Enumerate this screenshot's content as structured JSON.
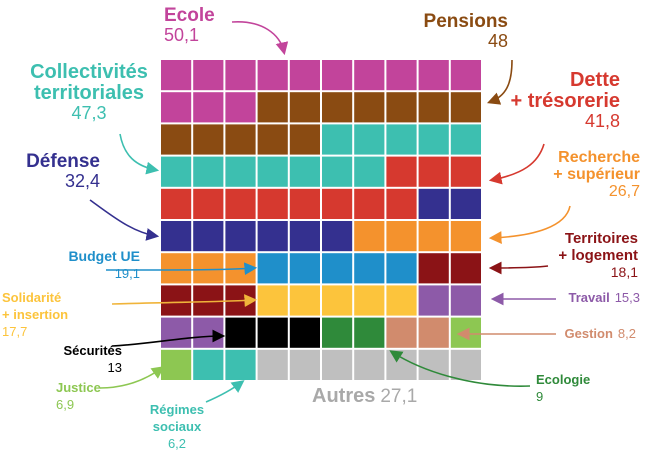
{
  "chart_data": {
    "type": "waffle",
    "unit_note": "",
    "categories": [
      {
        "key": "ecole",
        "name": "Ecole",
        "value": "50,1",
        "color": "#c2449b"
      },
      {
        "key": "pensions",
        "name": "Pensions",
        "value": "48",
        "color": "#8a4b12"
      },
      {
        "key": "collectivites",
        "name": "Collectivités territoriales",
        "name_lines": [
          "Collectivités",
          "territoriales"
        ],
        "value": "47,3",
        "color": "#3dbfb0"
      },
      {
        "key": "dette",
        "name": "Dette + trésorerie",
        "name_lines": [
          "Dette",
          "+ trésorerie"
        ],
        "value": "41,8",
        "color": "#d6392f"
      },
      {
        "key": "defense",
        "name": "Défense",
        "value": "32,4",
        "color": "#34308f"
      },
      {
        "key": "recherche",
        "name": "Recherche + supérieur",
        "name_lines": [
          "Recherche",
          "+ supérieur"
        ],
        "value": "26,7",
        "color": "#f4922d"
      },
      {
        "key": "budget_ue",
        "name": "Budget UE",
        "value": "19,1",
        "color": "#1f8fca"
      },
      {
        "key": "territoires",
        "name": "Territoires + logement",
        "name_lines": [
          "Territoires",
          "+ logement"
        ],
        "value": "18,1",
        "color": "#8b1316"
      },
      {
        "key": "solidarite",
        "name": "Solidarité + insertion",
        "name_lines": [
          "Solidarité",
          "+ insertion"
        ],
        "value": "17,7",
        "color": "#fcc43c"
      },
      {
        "key": "travail",
        "name": "Travail",
        "value": "15,3",
        "color": "#8d5aa8"
      },
      {
        "key": "securites",
        "name": "Sécurités",
        "value": "13",
        "color": "#000000"
      },
      {
        "key": "ecologie",
        "name": "Ecologie",
        "value": "9",
        "color": "#2f8a3a"
      },
      {
        "key": "gestion",
        "name": "Gestion",
        "value": "8,2",
        "color": "#d18b6d"
      },
      {
        "key": "justice",
        "name": "Justice",
        "value": "6,9",
        "color": "#8dc752"
      },
      {
        "key": "regimes",
        "name": "Régimes sociaux",
        "name_lines": [
          "Régimes",
          "sociaux"
        ],
        "value": "6,2",
        "color": "#3dbfb0"
      },
      {
        "key": "autres",
        "name": "Autres",
        "value": "27,1",
        "color": "#bfbfbf"
      }
    ],
    "grid": {
      "rows": 10,
      "cols": 10,
      "cells": [
        [
          "ecole",
          "ecole",
          "ecole",
          "ecole",
          "ecole",
          "ecole",
          "ecole",
          "ecole",
          "ecole",
          "ecole"
        ],
        [
          "ecole",
          "ecole",
          "ecole",
          "pensions",
          "pensions",
          "pensions",
          "pensions",
          "pensions",
          "pensions",
          "pensions"
        ],
        [
          "pensions",
          "pensions",
          "pensions",
          "pensions",
          "pensions",
          "collectivites",
          "collectivites",
          "collectivites",
          "collectivites",
          "collectivites"
        ],
        [
          "collectivites",
          "collectivites",
          "collectivites",
          "collectivites",
          "collectivites",
          "collectivites",
          "collectivites",
          "dette",
          "dette",
          "dette"
        ],
        [
          "dette",
          "dette",
          "dette",
          "dette",
          "dette",
          "dette",
          "dette",
          "dette",
          "defense",
          "defense"
        ],
        [
          "defense",
          "defense",
          "defense",
          "defense",
          "defense",
          "defense",
          "recherche",
          "recherche",
          "recherche",
          "recherche"
        ],
        [
          "recherche",
          "recherche",
          "recherche",
          "budget_ue",
          "budget_ue",
          "budget_ue",
          "budget_ue",
          "budget_ue",
          "territoires",
          "territoires"
        ],
        [
          "territoires",
          "territoires",
          "territoires",
          "solidarite",
          "solidarite",
          "solidarite",
          "solidarite",
          "solidarite",
          "travail",
          "travail"
        ],
        [
          "travail",
          "travail",
          "securites",
          "securites",
          "securites",
          "ecologie",
          "ecologie",
          "gestion",
          "gestion",
          "justice"
        ],
        [
          "justice",
          "regimes",
          "regimes",
          "autres",
          "autres",
          "autres",
          "autres",
          "autres",
          "autres",
          "autres"
        ]
      ]
    },
    "label_colors": {
      "autres": "#a9a9a9"
    }
  }
}
